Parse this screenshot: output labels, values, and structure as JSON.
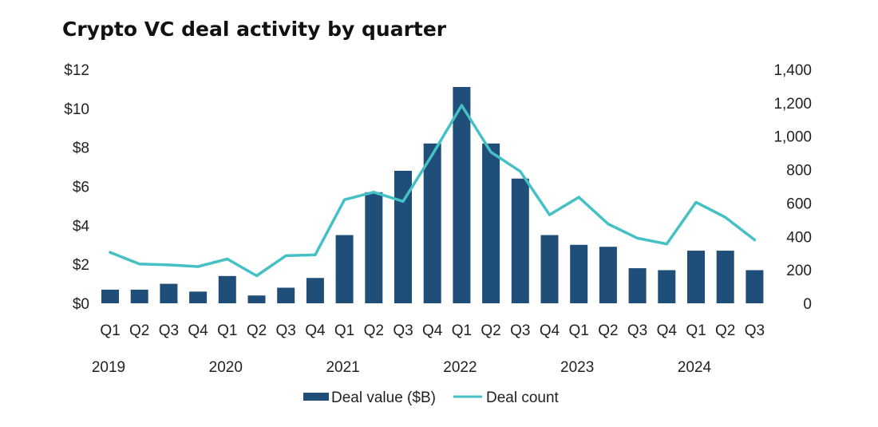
{
  "chart_data": {
    "type": "bar+line",
    "title": "Crypto VC deal activity by quarter",
    "categories": [
      "Q1",
      "Q2",
      "Q3",
      "Q4",
      "Q1",
      "Q2",
      "Q3",
      "Q4",
      "Q1",
      "Q2",
      "Q3",
      "Q4",
      "Q1",
      "Q2",
      "Q3",
      "Q4",
      "Q1",
      "Q2",
      "Q3",
      "Q4",
      "Q1",
      "Q2",
      "Q3"
    ],
    "years": [
      {
        "label": "2019",
        "start": 0
      },
      {
        "label": "2020",
        "start": 4
      },
      {
        "label": "2021",
        "start": 8
      },
      {
        "label": "2022",
        "start": 12
      },
      {
        "label": "2023",
        "start": 16
      },
      {
        "label": "2024",
        "start": 20
      }
    ],
    "series": [
      {
        "name": "Deal value ($B)",
        "type": "bar",
        "axis": "left",
        "color": "#1f4e79",
        "values": [
          0.7,
          0.7,
          1.0,
          0.6,
          1.4,
          0.4,
          0.8,
          1.3,
          3.5,
          5.7,
          6.8,
          8.2,
          11.1,
          8.2,
          6.4,
          3.5,
          3.0,
          2.9,
          1.8,
          1.7,
          2.7,
          2.7,
          1.7
        ]
      },
      {
        "name": "Deal count",
        "type": "line",
        "axis": "right",
        "color": "#45c1c6",
        "values": [
          305,
          235,
          230,
          220,
          265,
          165,
          285,
          290,
          620,
          665,
          610,
          890,
          1185,
          905,
          790,
          530,
          635,
          475,
          390,
          355,
          605,
          515,
          380
        ]
      }
    ],
    "y_left": {
      "min": 0,
      "max": 12,
      "ticks": [
        0,
        2,
        4,
        6,
        8,
        10,
        12
      ],
      "tick_labels": [
        "$0",
        "$2",
        "$4",
        "$6",
        "$8",
        "$10",
        "$12"
      ]
    },
    "y_right": {
      "min": 0,
      "max": 1400,
      "ticks": [
        0,
        200,
        400,
        600,
        800,
        1000,
        1200,
        1400
      ],
      "tick_labels": [
        "0",
        "200",
        "400",
        "600",
        "800",
        "1,000",
        "1,200",
        "1,400"
      ]
    },
    "legend": {
      "position": "bottom",
      "items": [
        "Deal value ($B)",
        "Deal count"
      ]
    },
    "grid": false
  }
}
